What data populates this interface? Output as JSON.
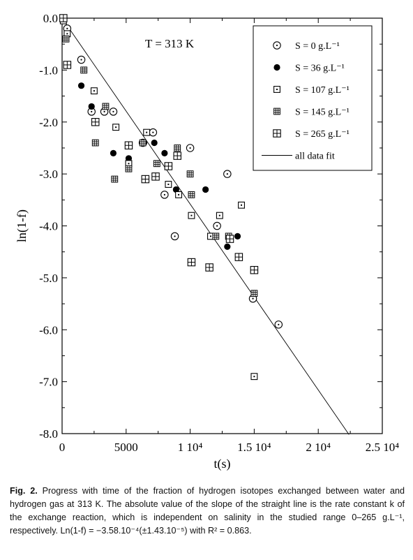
{
  "caption": {
    "label": "Fig. 2.",
    "text": "Progress with time of the fraction of hydrogen isotopes exchanged between water and hydrogen gas at 313 K. The absolute value of the slope of the straight line is the rate constant k of the exchange reaction, which is independent on salinity in the studied range 0–265 g.L⁻¹, respectively. Ln(1-f) = −3.58.10⁻⁴(±1.43.10⁻⁵) with R² = 0.863."
  },
  "chart_data": {
    "type": "scatter",
    "title": "",
    "annotation": "T = 313 K",
    "xlabel": "t(s)",
    "ylabel": "ln(1-f)",
    "xlim": [
      0,
      25000
    ],
    "ylim": [
      -8,
      0
    ],
    "x_ticks": [
      {
        "value": 0,
        "label": "0"
      },
      {
        "value": 5000,
        "label": "5000"
      },
      {
        "value": 10000,
        "label": "1 10⁴"
      },
      {
        "value": 15000,
        "label": "1.5 10⁴"
      },
      {
        "value": 20000,
        "label": "2 10⁴"
      },
      {
        "value": 25000,
        "label": "2.5 10⁴"
      }
    ],
    "y_ticks": [
      {
        "value": 0,
        "label": "0.0"
      },
      {
        "value": -1,
        "label": "-1.0"
      },
      {
        "value": -2,
        "label": "-2.0"
      },
      {
        "value": -3,
        "label": "-3.0"
      },
      {
        "value": -4,
        "label": "-4.0"
      },
      {
        "value": -5,
        "label": "-5.0"
      },
      {
        "value": -6,
        "label": "-6.0"
      },
      {
        "value": -7,
        "label": "-7.0"
      },
      {
        "value": -8,
        "label": "-8.0"
      }
    ],
    "legend_position": "top-right",
    "series": [
      {
        "name": "S = 0 g.L⁻¹",
        "marker": "circle-dot",
        "points": [
          [
            400,
            -0.2
          ],
          [
            1500,
            -0.8
          ],
          [
            2300,
            -1.8
          ],
          [
            3300,
            -1.8
          ],
          [
            4000,
            -1.8
          ],
          [
            6300,
            -2.4
          ],
          [
            7100,
            -2.2
          ],
          [
            8000,
            -3.4
          ],
          [
            8800,
            -4.2
          ],
          [
            10000,
            -2.5
          ],
          [
            12100,
            -4.0
          ],
          [
            12900,
            -3.0
          ],
          [
            14900,
            -5.4
          ],
          [
            16900,
            -5.9
          ]
        ]
      },
      {
        "name": "S = 36 g.L⁻¹",
        "marker": "filled-circle",
        "points": [
          [
            1500,
            -1.3
          ],
          [
            2300,
            -1.7
          ],
          [
            4000,
            -2.6
          ],
          [
            5200,
            -2.7
          ],
          [
            6400,
            -2.4
          ],
          [
            7200,
            -2.4
          ],
          [
            8000,
            -2.6
          ],
          [
            8900,
            -3.3
          ],
          [
            11200,
            -3.3
          ],
          [
            12000,
            -4.2
          ],
          [
            12900,
            -4.4
          ],
          [
            13700,
            -4.2
          ]
        ]
      },
      {
        "name": "S = 107 g.L⁻¹",
        "marker": "square-dot",
        "points": [
          [
            100,
            -0.05
          ],
          [
            400,
            -0.3
          ],
          [
            2500,
            -1.4
          ],
          [
            4200,
            -2.1
          ],
          [
            5200,
            -2.8
          ],
          [
            6600,
            -2.2
          ],
          [
            8300,
            -3.2
          ],
          [
            9100,
            -3.4
          ],
          [
            10100,
            -3.8
          ],
          [
            11600,
            -4.2
          ],
          [
            12300,
            -3.8
          ],
          [
            14000,
            -3.6
          ],
          [
            15000,
            -6.9
          ]
        ]
      },
      {
        "name": "S = 145 g.L⁻¹",
        "marker": "square-hash",
        "points": [
          [
            300,
            -0.4
          ],
          [
            1700,
            -1.0
          ],
          [
            2600,
            -2.4
          ],
          [
            3400,
            -1.7
          ],
          [
            4100,
            -3.1
          ],
          [
            5200,
            -2.9
          ],
          [
            6300,
            -2.4
          ],
          [
            7400,
            -2.8
          ],
          [
            9000,
            -2.5
          ],
          [
            10000,
            -3.0
          ],
          [
            10100,
            -3.4
          ],
          [
            12000,
            -4.2
          ],
          [
            13000,
            -4.2
          ],
          [
            15000,
            -5.3
          ]
        ]
      },
      {
        "name": "S = 265 g.L⁻¹",
        "marker": "square-cross",
        "points": [
          [
            100,
            0
          ],
          [
            400,
            -0.9
          ],
          [
            2600,
            -2.0
          ],
          [
            5200,
            -2.45
          ],
          [
            6500,
            -3.1
          ],
          [
            7300,
            -3.05
          ],
          [
            8300,
            -2.85
          ],
          [
            9000,
            -2.65
          ],
          [
            10100,
            -4.7
          ],
          [
            11500,
            -4.8
          ],
          [
            13100,
            -4.25
          ],
          [
            13800,
            -4.6
          ],
          [
            15000,
            -4.85
          ]
        ]
      }
    ],
    "fit": {
      "name": "all data fit",
      "slope": -0.000358,
      "intercept": 0,
      "x_range": [
        0,
        22400
      ]
    }
  }
}
